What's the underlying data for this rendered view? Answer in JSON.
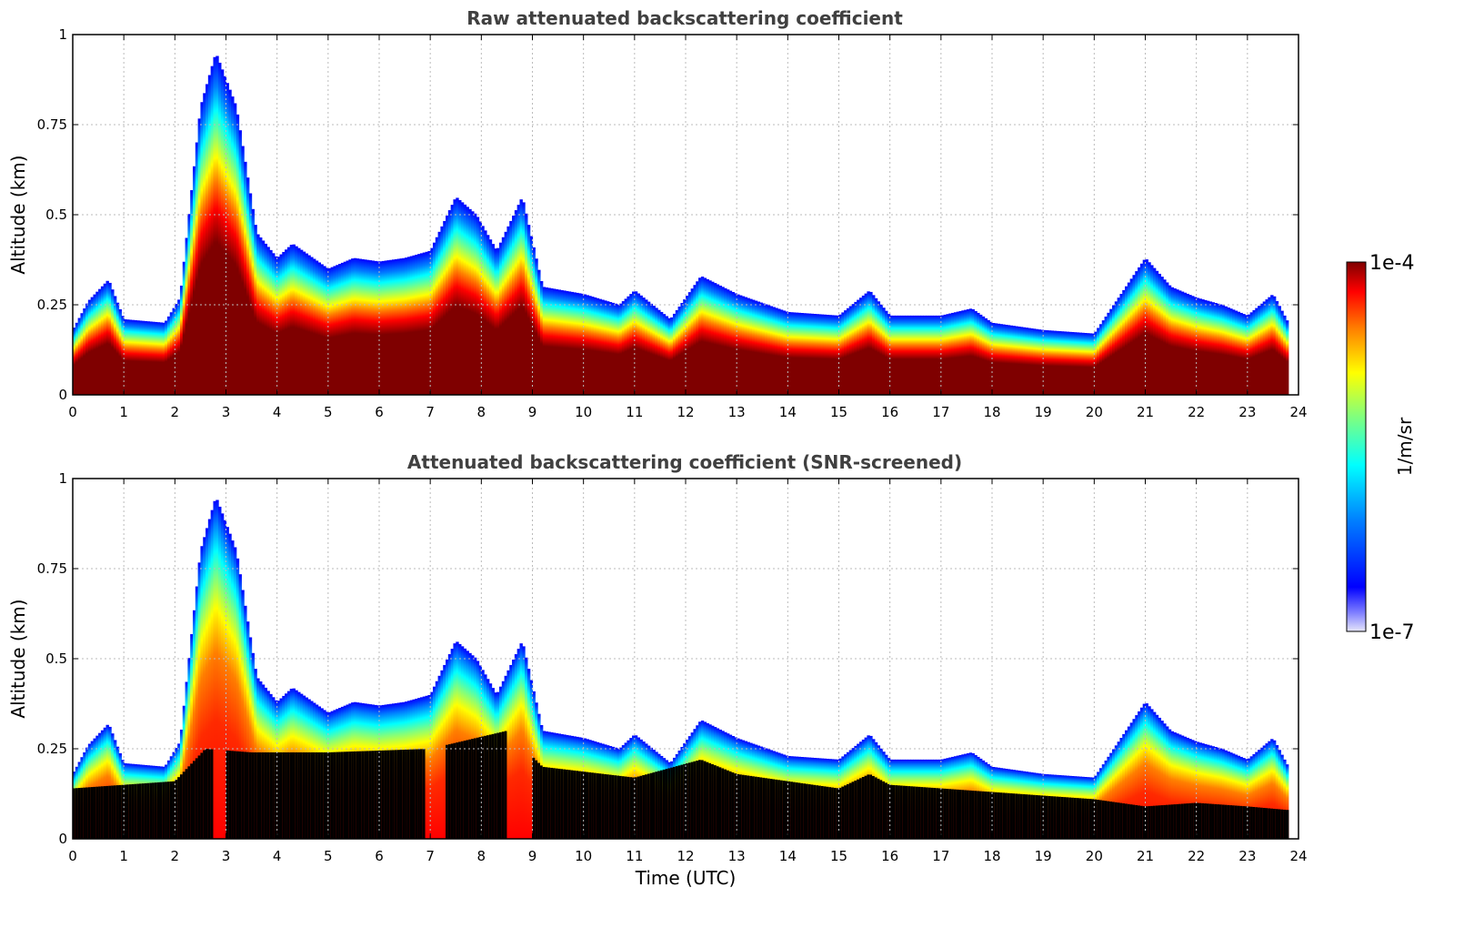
{
  "chart_data": [
    {
      "type": "heatmap",
      "title": "Raw attenuated backscattering coefficient",
      "xlabel": "",
      "ylabel": "Altitude (km)",
      "xlim": [
        0,
        24
      ],
      "ylim": [
        0,
        1
      ],
      "x_ticks": [
        "0",
        "1",
        "2",
        "3",
        "4",
        "5",
        "6",
        "7",
        "8",
        "9",
        "10",
        "11",
        "12",
        "13",
        "14",
        "15",
        "16",
        "17",
        "18",
        "19",
        "20",
        "21",
        "22",
        "23",
        "24"
      ],
      "y_ticks": [
        "0",
        "0.25",
        "0.5",
        "0.75",
        "1"
      ],
      "grid": true,
      "colorscale": "jet (log)",
      "layer_top_km": {
        "time_utc": [
          0,
          0.3,
          0.7,
          1.0,
          1.8,
          2.1,
          2.5,
          2.8,
          3.2,
          3.6,
          4.0,
          4.3,
          5.0,
          5.5,
          6.0,
          6.5,
          7.0,
          7.5,
          7.9,
          8.3,
          8.8,
          9.2,
          10.0,
          10.7,
          11.0,
          11.7,
          12.3,
          13.0,
          14.0,
          15.0,
          15.6,
          16.0,
          17.0,
          17.6,
          18.0,
          19.0,
          20.0,
          21.0,
          21.5,
          22.0,
          22.5,
          23.0,
          23.5,
          23.8
        ],
        "altitude_km": [
          0.18,
          0.26,
          0.32,
          0.21,
          0.2,
          0.27,
          0.8,
          0.95,
          0.8,
          0.45,
          0.38,
          0.42,
          0.35,
          0.38,
          0.37,
          0.38,
          0.4,
          0.55,
          0.5,
          0.4,
          0.55,
          0.3,
          0.28,
          0.25,
          0.29,
          0.21,
          0.33,
          0.28,
          0.23,
          0.22,
          0.29,
          0.22,
          0.22,
          0.24,
          0.2,
          0.18,
          0.17,
          0.38,
          0.3,
          0.27,
          0.25,
          0.22,
          0.28,
          0.2
        ]
      },
      "dense_core_top_km": {
        "time_utc": [
          0,
          1.0,
          2.0,
          2.6,
          3.5,
          5.0,
          7.0,
          8.5,
          9.2,
          11.0,
          12.3,
          13.0,
          15.0,
          15.6,
          16.0,
          18.0,
          20.0,
          21.0,
          22.0,
          23.0,
          23.8
        ],
        "altitude_km": [
          0.14,
          0.15,
          0.16,
          0.25,
          0.24,
          0.24,
          0.25,
          0.3,
          0.2,
          0.17,
          0.22,
          0.18,
          0.14,
          0.18,
          0.15,
          0.13,
          0.11,
          0.09,
          0.1,
          0.09,
          0.08
        ]
      }
    },
    {
      "type": "heatmap",
      "title": "Attenuated backscattering coefficient (SNR-screened)",
      "xlabel": "Time (UTC)",
      "ylabel": "Altitude (km)",
      "xlim": [
        0,
        24
      ],
      "ylim": [
        0,
        1
      ],
      "x_ticks": [
        "0",
        "1",
        "2",
        "3",
        "4",
        "5",
        "6",
        "7",
        "8",
        "9",
        "10",
        "11",
        "12",
        "13",
        "14",
        "15",
        "16",
        "17",
        "18",
        "19",
        "20",
        "21",
        "22",
        "23",
        "24"
      ],
      "y_ticks": [
        "0",
        "0.25",
        "0.5",
        "0.75",
        "1"
      ],
      "grid": true,
      "colorscale": "jet (log)",
      "screened_region_color": "#000000",
      "unscreened_columns_utc": [
        [
          2.75,
          3.0
        ],
        [
          6.9,
          7.3
        ],
        [
          8.5,
          9.0
        ]
      ]
    }
  ],
  "colorbar": {
    "label": "1/m/sr",
    "max_label": "1e-4",
    "min_label": "1e-7",
    "scale": "log",
    "min": 1e-07,
    "max": 0.0001
  },
  "colors": {
    "jet": [
      "#00007f",
      "#0000ff",
      "#007fff",
      "#00ffff",
      "#7fff7f",
      "#ffff00",
      "#ff7f00",
      "#ff0000",
      "#7f0000"
    ],
    "low": "#e6e6fa",
    "grid": "#bbbbbb",
    "title": "#404040"
  }
}
